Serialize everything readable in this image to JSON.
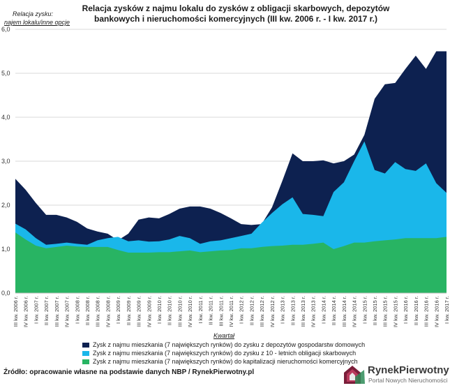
{
  "title": "Relacja zysków z najmu lokalu do zysków z obligacji skarbowych, depozytów bankowych i nieruchomości komercyjnych (III kw. 2006 r. - I kw. 2017 r.)",
  "source": "Źródło: opracowanie własne na podstawie danych NBP / RynekPierwotny.pl",
  "logo": {
    "name": "RynekPierwotny",
    "subtitle": "Portal Nowych Nieruchomości"
  },
  "colors": {
    "deposits": "#0d2150",
    "bonds": "#1ab7ea",
    "commercial": "#28b463"
  },
  "chart_data": {
    "type": "area",
    "ylabel_line1": "Relacja zysku:",
    "ylabel_line2": "najem lokalu/inne opcje",
    "xlabel": "Kwartał",
    "ylim": [
      0,
      6
    ],
    "yticks": [
      "0,0",
      "1,0",
      "2,0",
      "3,0",
      "4,0",
      "5,0",
      "6,0"
    ],
    "grid": true,
    "legend_position": "bottom",
    "categories": [
      "III kw. 2006 r.",
      "IV kw. 2006 r.",
      "I kw. 2007 r.",
      "II kw. 2007 r.",
      "III kw. 2007 r.",
      "IV kw. 2007 r.",
      "I kw. 2008 r.",
      "II kw. 2008 r.",
      "III kw. 2008 r.",
      "IV kw. 2008 r.",
      "I kw. 2009 r.",
      "II kw. 2009 r.",
      "III kw. 2009 r.",
      "IV kw. 2009 r.",
      "I kw. 2010 r.",
      "II kw. 2010 r.",
      "III kw. 2010 r.",
      "IV kw. 2010 r.",
      "I kw. 2011 r.",
      "II kw. 2011 r.",
      "III kw. 2011 r.",
      "IV kw. 2011 r.",
      "I kw. 2012 r.",
      "II kw. 2012 r.",
      "III kw. 2012 r.",
      "IV kw. 2012 r.",
      "I kw. 2013 r.",
      "II kw. 2013 r.",
      "III kw. 2013 r.",
      "IV kw. 2013 r.",
      "I kw. 2014 r.",
      "II kw. 2014 r.",
      "III kw. 2014 r.",
      "IV kw. 2014 r.",
      "I kw. 2015 r.",
      "II kw. 2015 r.",
      "III kw. 2015 r.",
      "IV kw. 2015 r.",
      "I kw. 2016 r.",
      "II kw. 2016 r.",
      "III kw. 2016 r.",
      "IV kw. 2016 r.",
      "I kw. 2017 r."
    ],
    "tick_labels": [
      "III kw. 2006 r.",
      "IV kw. 2006 r.",
      "I kw. 2007 r.",
      "II kw. 2007 r.",
      "III kw. 2007 r.",
      "IV kw. 2007 r.",
      "I kw. 2008 r.",
      "II kw. 2008 r.",
      "III kw. 2008 r.",
      "IV kw. 2008 r.",
      "I kw. 2009 r.",
      "II kw. 2009 r.",
      "III kw. 2009 r.",
      "IV kw. 2009 r.",
      "I kw. 2010 r.",
      "II kw. 2010 r.",
      "III kw. 2010 r.",
      "IV kw. 2010 r.",
      "I kw. 2011 r.",
      "II kw. 2011 r.",
      "III kw. 2011 r.",
      "IV kw. 2011 r.",
      "I kw. 2012 r.",
      "II kw. 2012 r.",
      "III kw. 2012 r.",
      "IV kw. 2012 r.",
      "I kw. 2013 r.",
      "II kw. 2013 r.",
      "III kw. 2013 r.",
      "IV kw. 2013 r.",
      "I kw. 2014 r.",
      "II kw. 2014 r.",
      "III kw. 2014 r.",
      "IV kw. 2014 r.",
      "I kw. 2015 r.",
      "II kw. 2015 r.",
      "III kw. 2015 r.",
      "IV kw. 2015 r.",
      "I kw. 2016 r.",
      "II kw. 2016 r.",
      "III kw. 2016 r.",
      "IV kw. 2016 r.",
      "I kw. 2017 r."
    ],
    "series": [
      {
        "name": "Zysk z najmu mieszkania (7 największych rynków) do zysku z depozytów gospodarstw domowych",
        "color": "#0d2150",
        "values": [
          2.6,
          2.35,
          2.05,
          1.78,
          1.78,
          1.72,
          1.62,
          1.47,
          1.4,
          1.35,
          1.2,
          1.35,
          1.67,
          1.72,
          1.7,
          1.8,
          1.92,
          1.97,
          1.97,
          1.92,
          1.82,
          1.7,
          1.57,
          1.55,
          1.57,
          1.95,
          2.55,
          3.18,
          3.0,
          3.0,
          3.02,
          2.95,
          3.0,
          3.15,
          3.6,
          4.42,
          4.75,
          4.78,
          5.1,
          5.4,
          5.1,
          5.5,
          5.5
        ]
      },
      {
        "name": "Zysk z najmu mieszkania (7 największych rynków) do zysku z 10 - letnich obligacji skarbowych",
        "color": "#1ab7ea",
        "values": [
          1.58,
          1.45,
          1.25,
          1.1,
          1.12,
          1.15,
          1.12,
          1.1,
          1.2,
          1.25,
          1.28,
          1.18,
          1.2,
          1.17,
          1.18,
          1.22,
          1.3,
          1.25,
          1.12,
          1.18,
          1.2,
          1.25,
          1.3,
          1.35,
          1.6,
          1.82,
          2.02,
          2.18,
          1.8,
          1.78,
          1.75,
          2.3,
          2.52,
          3.0,
          3.45,
          2.8,
          2.72,
          2.98,
          2.82,
          2.78,
          2.95,
          2.5,
          2.28
        ]
      },
      {
        "name": "Zysk z najmu mieszkania (7 największych rynków) do kapitalizacji nieruchomości komercyjnych",
        "color": "#28b463",
        "values": [
          1.38,
          1.22,
          1.08,
          1.02,
          1.05,
          1.08,
          1.06,
          1.05,
          1.05,
          1.05,
          0.98,
          0.92,
          0.92,
          0.92,
          0.93,
          0.93,
          0.95,
          0.97,
          0.93,
          0.95,
          0.97,
          0.98,
          1.02,
          1.02,
          1.05,
          1.07,
          1.08,
          1.1,
          1.1,
          1.12,
          1.15,
          1.0,
          1.07,
          1.15,
          1.15,
          1.18,
          1.2,
          1.22,
          1.25,
          1.25,
          1.25,
          1.25,
          1.28
        ]
      }
    ]
  }
}
